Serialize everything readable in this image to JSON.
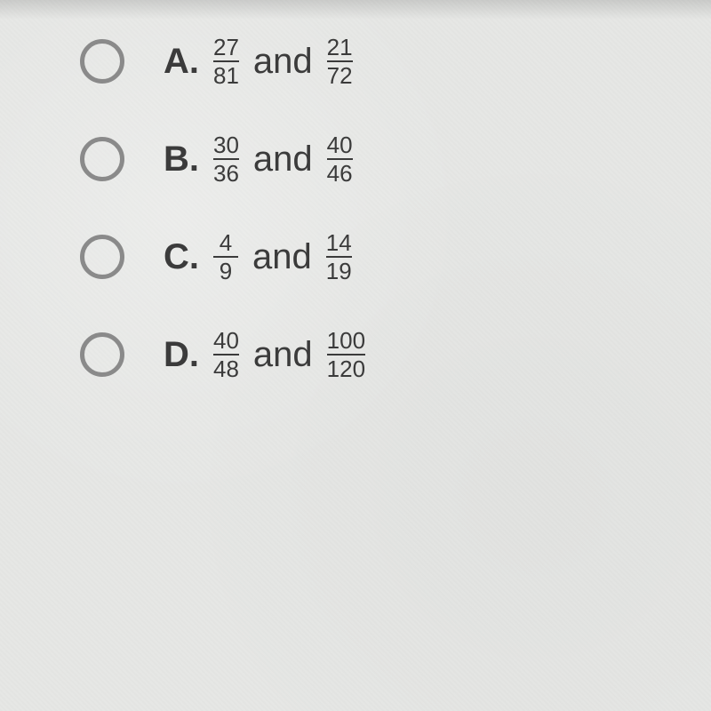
{
  "options": [
    {
      "letter": "A.",
      "f1": {
        "num": "27",
        "den": "81"
      },
      "conj": "and",
      "f2": {
        "num": "21",
        "den": "72"
      }
    },
    {
      "letter": "B.",
      "f1": {
        "num": "30",
        "den": "36"
      },
      "conj": "and",
      "f2": {
        "num": "40",
        "den": "46"
      }
    },
    {
      "letter": "C.",
      "f1": {
        "num": "4",
        "den": "9"
      },
      "conj": "and",
      "f2": {
        "num": "14",
        "den": "19"
      }
    },
    {
      "letter": "D.",
      "f1": {
        "num": "40",
        "den": "48"
      },
      "conj": "and",
      "f2": {
        "num": "100",
        "den": "120"
      }
    }
  ]
}
